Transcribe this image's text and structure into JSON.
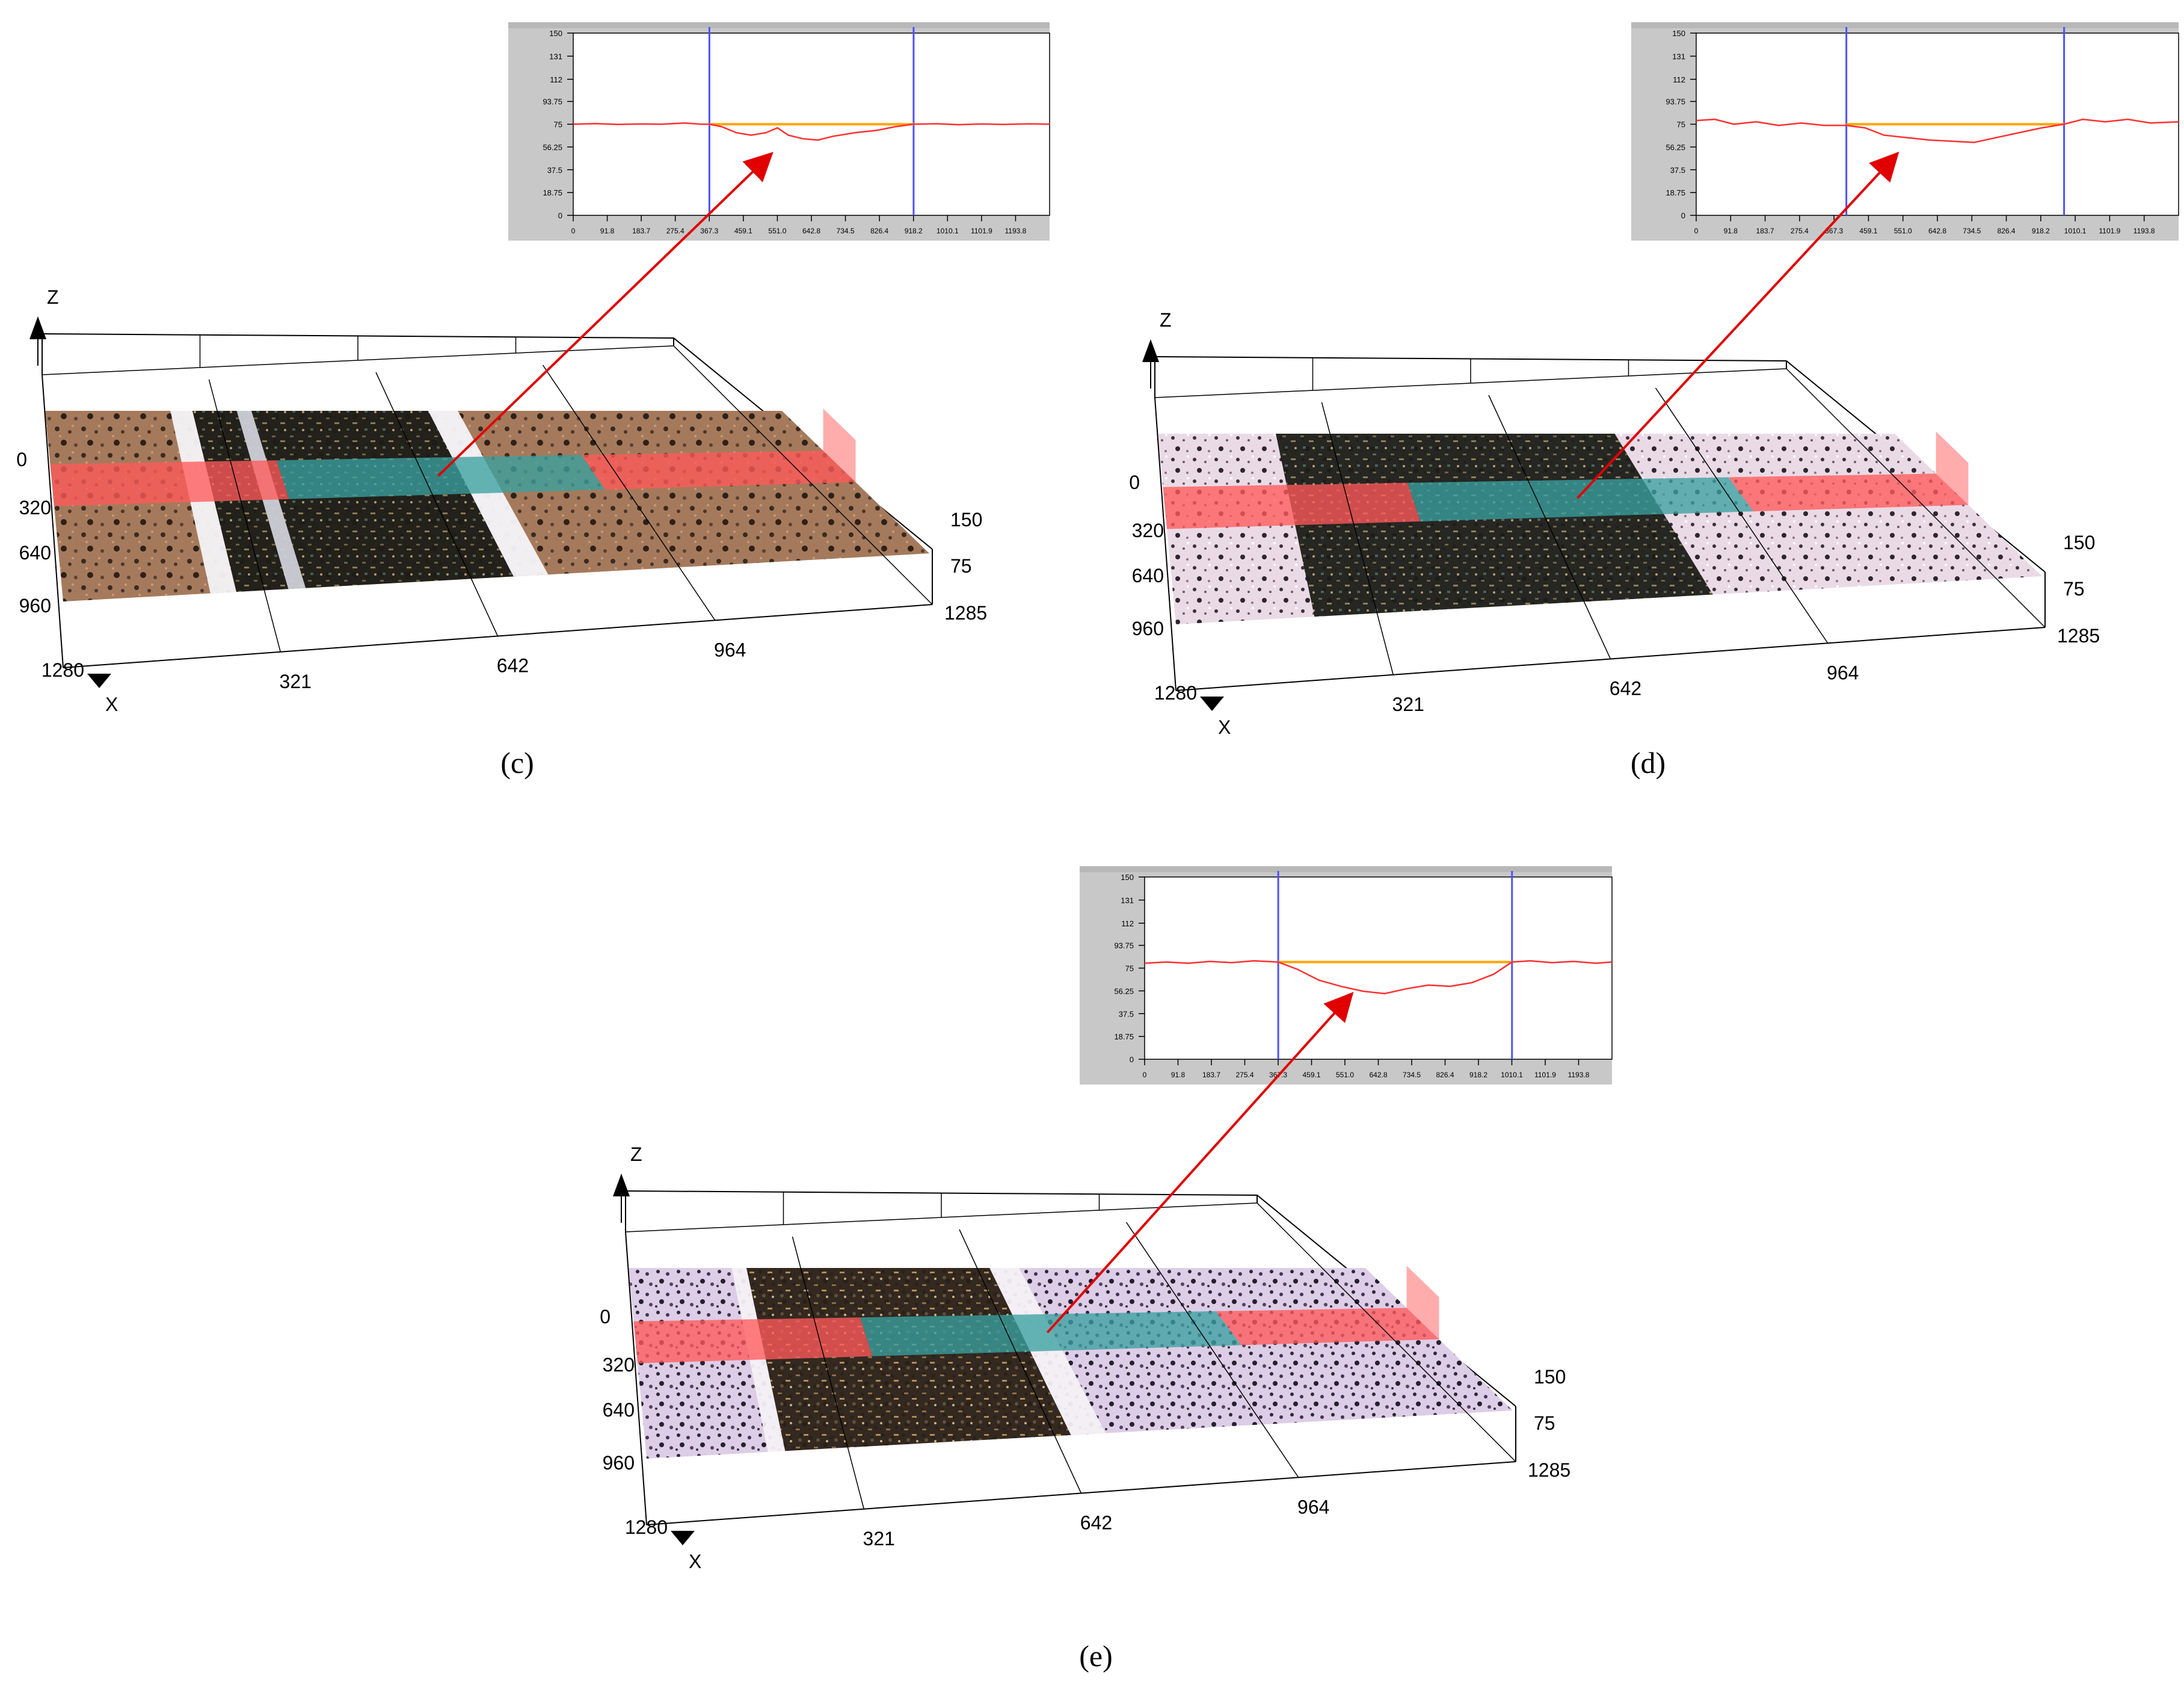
{
  "panels": [
    {
      "id": "c",
      "caption": "(c)",
      "surface_style": "brown",
      "profile": {
        "y_ticks": [
          "150",
          "131",
          "112",
          "93.75",
          "75",
          "56.25",
          "37.5",
          "18.75",
          "0"
        ],
        "x_ticks": [
          "0",
          "91.8",
          "183.7",
          "275.4",
          "367.3",
          "459.1",
          "551.0",
          "642.8",
          "734.5",
          "826.4",
          "918.2",
          "1010.1",
          "1101.9",
          "1193.8"
        ],
        "y_max": 150,
        "x_max": 1285,
        "reference_level": 75,
        "marker_left": 367.3,
        "marker_right": 918.2,
        "curve": [
          [
            0,
            75
          ],
          [
            60,
            75.5
          ],
          [
            120,
            74.8
          ],
          [
            180,
            75.2
          ],
          [
            240,
            75
          ],
          [
            300,
            76
          ],
          [
            345,
            75
          ],
          [
            367,
            75
          ],
          [
            400,
            73
          ],
          [
            440,
            68
          ],
          [
            480,
            66
          ],
          [
            520,
            68
          ],
          [
            551,
            72
          ],
          [
            580,
            66
          ],
          [
            620,
            63
          ],
          [
            660,
            62
          ],
          [
            700,
            65
          ],
          [
            760,
            68
          ],
          [
            820,
            70
          ],
          [
            870,
            73
          ],
          [
            918,
            75
          ],
          [
            980,
            75.4
          ],
          [
            1040,
            74.6
          ],
          [
            1100,
            75.2
          ],
          [
            1160,
            74.8
          ],
          [
            1230,
            75.3
          ],
          [
            1285,
            75
          ]
        ]
      },
      "axes3d": {
        "z_label": "Z",
        "x_label": "X",
        "x_ticks": [
          "0",
          "320",
          "640",
          "960",
          "1280"
        ],
        "y_ticks": [
          "321",
          "642",
          "964",
          "1285"
        ],
        "z_ticks": [
          "150",
          "75"
        ]
      }
    },
    {
      "id": "d",
      "caption": "(d)",
      "surface_style": "pale",
      "profile": {
        "y_ticks": [
          "150",
          "131",
          "112",
          "93.75",
          "75",
          "56.25",
          "37.5",
          "18.75",
          "0"
        ],
        "x_ticks": [
          "0",
          "91.8",
          "183.7",
          "275.4",
          "367.3",
          "459.1",
          "551.0",
          "642.8",
          "734.5",
          "826.4",
          "918.2",
          "1010.1",
          "1101.9",
          "1193.8"
        ],
        "y_max": 150,
        "x_max": 1285,
        "reference_level": 75,
        "marker_left": 400,
        "marker_right": 980,
        "curve": [
          [
            0,
            78
          ],
          [
            50,
            79
          ],
          [
            100,
            75
          ],
          [
            160,
            77
          ],
          [
            220,
            74
          ],
          [
            280,
            76
          ],
          [
            340,
            74
          ],
          [
            400,
            74
          ],
          [
            450,
            72
          ],
          [
            500,
            66
          ],
          [
            560,
            64
          ],
          [
            620,
            62
          ],
          [
            680,
            61
          ],
          [
            740,
            60
          ],
          [
            800,
            64
          ],
          [
            860,
            68
          ],
          [
            920,
            72
          ],
          [
            980,
            75
          ],
          [
            1030,
            79
          ],
          [
            1090,
            77
          ],
          [
            1150,
            79
          ],
          [
            1210,
            76
          ],
          [
            1285,
            77
          ]
        ]
      },
      "axes3d": {
        "z_label": "Z",
        "x_label": "X",
        "x_ticks": [
          "0",
          "320",
          "640",
          "960",
          "1280"
        ],
        "y_ticks": [
          "321",
          "642",
          "964",
          "1285"
        ],
        "z_ticks": [
          "150",
          "75"
        ]
      }
    },
    {
      "id": "e",
      "caption": "(e)",
      "surface_style": "lilac",
      "profile": {
        "y_ticks": [
          "150",
          "131",
          "112",
          "93.75",
          "75",
          "56.25",
          "37.5",
          "18.75",
          "0"
        ],
        "x_ticks": [
          "0",
          "91.8",
          "183.7",
          "275.4",
          "367.3",
          "459.1",
          "551.0",
          "642.8",
          "734.5",
          "826.4",
          "918.2",
          "1010.1",
          "1101.9",
          "1193.8"
        ],
        "y_max": 150,
        "x_max": 1285,
        "reference_level": 80,
        "marker_left": 367.3,
        "marker_right": 1010.1,
        "curve": [
          [
            0,
            79
          ],
          [
            60,
            80
          ],
          [
            120,
            79
          ],
          [
            180,
            80.5
          ],
          [
            240,
            79.5
          ],
          [
            300,
            81
          ],
          [
            367,
            80
          ],
          [
            420,
            74
          ],
          [
            480,
            65
          ],
          [
            540,
            60
          ],
          [
            600,
            56
          ],
          [
            660,
            54
          ],
          [
            720,
            58
          ],
          [
            780,
            61
          ],
          [
            840,
            60
          ],
          [
            900,
            63
          ],
          [
            960,
            70
          ],
          [
            1010,
            80
          ],
          [
            1060,
            81
          ],
          [
            1120,
            79.5
          ],
          [
            1180,
            80.5
          ],
          [
            1240,
            79
          ],
          [
            1285,
            80
          ]
        ]
      },
      "axes3d": {
        "z_label": "Z",
        "x_label": "X",
        "x_ticks": [
          "0",
          "320",
          "640",
          "960",
          "1280"
        ],
        "y_ticks": [
          "321",
          "642",
          "964",
          "1285"
        ],
        "z_ticks": [
          "150",
          "75"
        ]
      }
    }
  ],
  "colors": {
    "profile_curve": "#ff3030",
    "reference_line": "#ffa500",
    "marker_line": "#5050ff",
    "arrow": "#e00000",
    "band_red": "#ff5a5a",
    "band_teal": "#3aa0a0",
    "plot_frame_bg": "#c8c8c8",
    "plot_bg": "#ffffff"
  }
}
